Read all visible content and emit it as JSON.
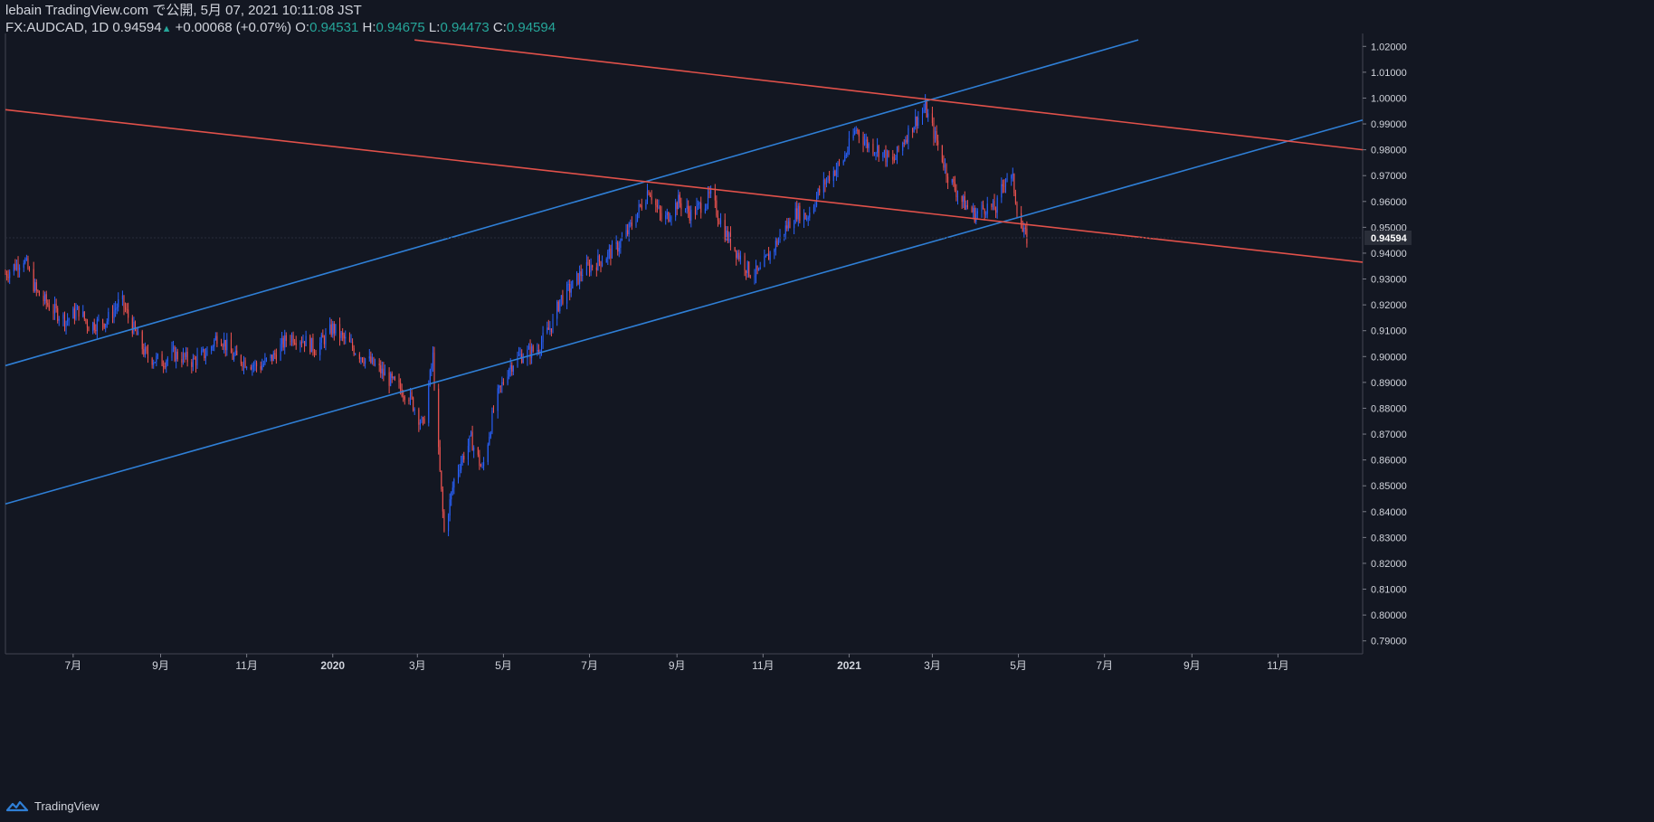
{
  "header": {
    "line1": "lebain TradingView.com で公開, 5月 07, 2021 10:11:08 JST",
    "symbol": "FX:AUDCAD, 1D",
    "last": "0.94594",
    "change": "+0.00068 (+0.07%)",
    "o_label": "O:",
    "o_value": "0.94531",
    "h_label": "H:",
    "h_value": "0.94675",
    "l_label": "L:",
    "l_value": "0.94473",
    "c_label": "C:",
    "c_value": "0.94594"
  },
  "footer": {
    "brand": "TradingView"
  },
  "colors": {
    "background": "#131722",
    "up": "#2962ff",
    "down": "#ef5350",
    "trend_blue": "#2f7fd6",
    "trend_red": "#e0514a",
    "axis_text": "#d1d4dc",
    "value_green": "#26a69a"
  },
  "chart_data": {
    "type": "candlestick",
    "symbol": "FX:AUDCAD",
    "interval": "1D",
    "last_price_label": "0.94594",
    "y_axis": {
      "min": 0.785,
      "max": 1.025,
      "ticks": [
        "1.02000",
        "1.01000",
        "1.00000",
        "0.99000",
        "0.98000",
        "0.97000",
        "0.96000",
        "0.95000",
        "0.94000",
        "0.93000",
        "0.92000",
        "0.91000",
        "0.90000",
        "0.89000",
        "0.88000",
        "0.87000",
        "0.86000",
        "0.85000",
        "0.84000",
        "0.83000",
        "0.82000",
        "0.81000",
        "0.80000",
        "0.79000"
      ]
    },
    "x_axis": {
      "start": "2019-05-14",
      "end": "2021-12-31",
      "ticks": [
        {
          "date": "2019-07-01",
          "label": "7月"
        },
        {
          "date": "2019-09-01",
          "label": "9月"
        },
        {
          "date": "2019-11-01",
          "label": "11月"
        },
        {
          "date": "2020-01-01",
          "label": "2020"
        },
        {
          "date": "2020-03-01",
          "label": "3月"
        },
        {
          "date": "2020-05-01",
          "label": "5月"
        },
        {
          "date": "2020-07-01",
          "label": "7月"
        },
        {
          "date": "2020-09-01",
          "label": "9月"
        },
        {
          "date": "2020-11-01",
          "label": "11月"
        },
        {
          "date": "2021-01-01",
          "label": "2021"
        },
        {
          "date": "2021-03-01",
          "label": "3月"
        },
        {
          "date": "2021-05-01",
          "label": "5月"
        },
        {
          "date": "2021-07-01",
          "label": "7月"
        },
        {
          "date": "2021-09-01",
          "label": "9月"
        },
        {
          "date": "2021-11-01",
          "label": "11月"
        }
      ]
    },
    "price_path": [
      [
        "2019-05-14",
        0.932
      ],
      [
        "2019-05-27",
        0.938
      ],
      [
        "2019-06-05",
        0.925
      ],
      [
        "2019-06-15",
        0.919
      ],
      [
        "2019-06-26",
        0.914
      ],
      [
        "2019-07-05",
        0.918
      ],
      [
        "2019-07-12",
        0.912
      ],
      [
        "2019-07-25",
        0.914
      ],
      [
        "2019-08-04",
        0.922
      ],
      [
        "2019-08-10",
        0.914
      ],
      [
        "2019-08-22",
        0.9
      ],
      [
        "2019-09-02",
        0.898
      ],
      [
        "2019-09-10",
        0.901
      ],
      [
        "2019-09-24",
        0.898
      ],
      [
        "2019-10-05",
        0.902
      ],
      [
        "2019-10-12",
        0.909
      ],
      [
        "2019-10-22",
        0.9
      ],
      [
        "2019-11-01",
        0.898
      ],
      [
        "2019-11-10",
        0.896
      ],
      [
        "2019-11-20",
        0.9
      ],
      [
        "2019-12-01",
        0.908
      ],
      [
        "2019-12-10",
        0.907
      ],
      [
        "2019-12-20",
        0.903
      ],
      [
        "2020-01-01",
        0.911
      ],
      [
        "2020-01-12",
        0.905
      ],
      [
        "2020-01-22",
        0.9
      ],
      [
        "2020-02-01",
        0.896
      ],
      [
        "2020-02-12",
        0.89
      ],
      [
        "2020-02-24",
        0.885
      ],
      [
        "2020-03-05",
        0.873
      ],
      [
        "2020-03-12",
        0.9
      ],
      [
        "2020-03-15",
        0.87
      ],
      [
        "2020-03-20",
        0.832
      ],
      [
        "2020-03-28",
        0.855
      ],
      [
        "2020-04-08",
        0.868
      ],
      [
        "2020-04-16",
        0.856
      ],
      [
        "2020-04-25",
        0.882
      ],
      [
        "2020-05-05",
        0.896
      ],
      [
        "2020-05-12",
        0.9
      ],
      [
        "2020-05-25",
        0.903
      ],
      [
        "2020-06-05",
        0.913
      ],
      [
        "2020-06-10",
        0.922
      ],
      [
        "2020-06-20",
        0.928
      ],
      [
        "2020-06-26",
        0.933
      ],
      [
        "2020-07-08",
        0.937
      ],
      [
        "2020-07-20",
        0.942
      ],
      [
        "2020-07-28",
        0.948
      ],
      [
        "2020-08-06",
        0.958
      ],
      [
        "2020-08-12",
        0.965
      ],
      [
        "2020-08-22",
        0.952
      ],
      [
        "2020-09-02",
        0.96
      ],
      [
        "2020-09-11",
        0.955
      ],
      [
        "2020-09-25",
        0.962
      ],
      [
        "2020-10-05",
        0.948
      ],
      [
        "2020-10-14",
        0.94
      ],
      [
        "2020-10-22",
        0.933
      ],
      [
        "2020-10-29",
        0.932
      ],
      [
        "2020-11-06",
        0.94
      ],
      [
        "2020-11-15",
        0.948
      ],
      [
        "2020-11-25",
        0.956
      ],
      [
        "2020-12-02",
        0.954
      ],
      [
        "2020-12-10",
        0.963
      ],
      [
        "2020-12-18",
        0.97
      ],
      [
        "2020-12-27",
        0.975
      ],
      [
        "2021-01-06",
        0.988
      ],
      [
        "2021-01-14",
        0.982
      ],
      [
        "2021-01-22",
        0.98
      ],
      [
        "2021-02-01",
        0.975
      ],
      [
        "2021-02-10",
        0.985
      ],
      [
        "2021-02-18",
        0.992
      ],
      [
        "2021-02-24",
        0.996
      ],
      [
        "2021-03-03",
        0.985
      ],
      [
        "2021-03-12",
        0.97
      ],
      [
        "2021-03-22",
        0.96
      ],
      [
        "2021-03-31",
        0.955
      ],
      [
        "2021-04-08",
        0.958
      ],
      [
        "2021-04-15",
        0.957
      ],
      [
        "2021-04-22",
        0.97
      ],
      [
        "2021-04-27",
        0.968
      ],
      [
        "2021-04-30",
        0.958
      ],
      [
        "2021-05-04",
        0.948
      ],
      [
        "2021-05-07",
        0.94594
      ]
    ],
    "trend_lines": [
      {
        "color": "blue",
        "from": [
          "2019-05-14",
          0.8965
        ],
        "to": [
          "2021-07-25",
          1.0225
        ]
      },
      {
        "color": "blue",
        "from": [
          "2019-05-14",
          0.843
        ],
        "to": [
          "2021-12-31",
          0.9915
        ]
      },
      {
        "color": "red",
        "from": [
          "2020-02-28",
          1.0225
        ],
        "to": [
          "2021-12-31",
          0.98
        ]
      },
      {
        "color": "red",
        "from": [
          "2019-05-14",
          0.9955
        ],
        "to": [
          "2021-12-31",
          0.9365
        ]
      }
    ]
  }
}
